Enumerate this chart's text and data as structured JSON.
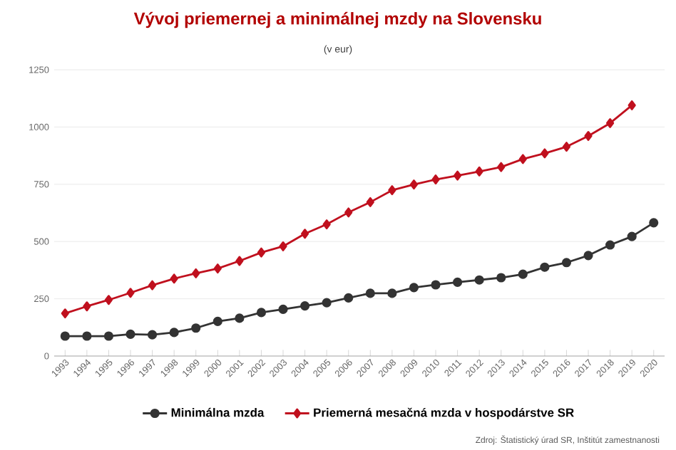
{
  "chart_data": {
    "type": "line",
    "title": "Vývoj priemernej a minimálnej mzdy na Slovensku",
    "subtitle": "(v eur)",
    "categories": [
      "1993",
      "1994",
      "1995",
      "1996",
      "1997",
      "1998",
      "1999",
      "2000",
      "2001",
      "2002",
      "2003",
      "2004",
      "2005",
      "2006",
      "2007",
      "2008",
      "2009",
      "2010",
      "2011",
      "2012",
      "2013",
      "2014",
      "2015",
      "2016",
      "2017",
      "2018",
      "2019",
      "2020"
    ],
    "series": [
      {
        "name": "Minimálna mzda",
        "color": "#333333",
        "marker": "circle",
        "values": [
          87,
          87,
          87,
          95,
          93,
          103,
          122,
          151,
          165,
          190,
          204,
          219,
          233,
          254,
          274,
          274,
          299,
          311,
          322,
          332,
          342,
          357,
          388,
          408,
          439,
          485,
          522,
          582
        ]
      },
      {
        "name": "Priemerná mesačná mzda v hospodárstve SR",
        "color": "#c0101e",
        "marker": "diamond",
        "values": [
          186,
          217,
          245,
          276,
          309,
          338,
          361,
          382,
          415,
          452,
          479,
          534,
          575,
          627,
          672,
          724,
          749,
          771,
          788,
          806,
          825,
          860,
          885,
          914,
          961,
          1017,
          1095,
          null
        ]
      }
    ],
    "ylim": [
      0,
      1250
    ],
    "yticks": [
      0,
      250,
      500,
      750,
      1000,
      1250
    ],
    "grid": "y",
    "legend": "bottom",
    "line_style": "solid",
    "annotations": [
      "Zdroj: Štatistický úrad SR, Inštitút zamestnanosti"
    ]
  }
}
